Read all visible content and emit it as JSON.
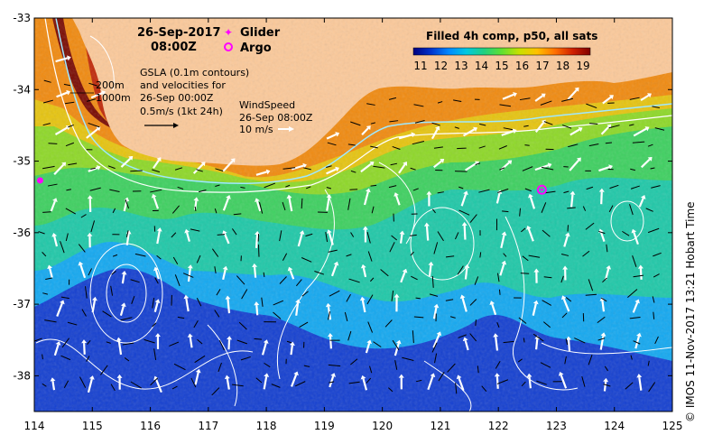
{
  "title": {
    "date": "26-Sep-2017",
    "time": "08:00Z"
  },
  "legend": {
    "glider": "Glider",
    "argo": "Argo",
    "glider_color": "#ff00ff",
    "argo_color": "#ff00ff"
  },
  "colorbar": {
    "title": "Filled 4h comp, p50, all sats",
    "ticks": [
      "11",
      "12",
      "13",
      "14",
      "15",
      "16",
      "17",
      "18",
      "19"
    ],
    "colors": [
      "#00007f",
      "#0033cc",
      "#0088ff",
      "#00c8e0",
      "#20d080",
      "#60e030",
      "#c8e000",
      "#ffc000",
      "#ff7000",
      "#d02000",
      "#800000"
    ]
  },
  "annotations": {
    "gsla_line1": "GSLA (0.1m contours)",
    "gsla_line2": "and velocities for",
    "gsla_line3": "26-Sep 00:00Z",
    "gsla_line4": "0.5m/s (1kt 24h)",
    "isobath_200": "200m",
    "isobath_1000": "1000m",
    "wind_line1": "WindSpeed",
    "wind_line2": "26-Sep 08:00Z",
    "wind_line3": "10 m/s"
  },
  "axes": {
    "y_ticks": [
      "-33",
      "-34",
      "-35",
      "-36",
      "-37",
      "-38"
    ],
    "x_ticks": [
      "114",
      "115",
      "116",
      "117",
      "118",
      "119",
      "120",
      "121",
      "122",
      "123",
      "124",
      "125"
    ]
  },
  "markers": {
    "glider_position": {
      "lon": 114.1,
      "lat": -35.27
    },
    "argo_position": {
      "lon": 122.75,
      "lat": -35.4
    }
  },
  "credit": "© IMOS 11-Nov-2017 13:21 Hobart Time",
  "colors": {
    "land": "#fbc99a",
    "frame": "#000000"
  }
}
